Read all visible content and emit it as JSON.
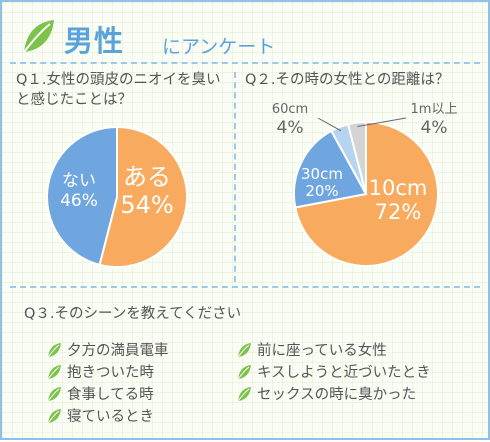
{
  "header": {
    "title": "男性",
    "subtitle": "にアンケート",
    "icon": "leaf-icon",
    "accent": "#5aa3da"
  },
  "q1": {
    "question": "Q１.女性の頭皮のニオイを臭いと感じたことは？"
  },
  "q2": {
    "question": "Q２.その時の女性との距離は？"
  },
  "q3": {
    "question": "Q３.そのシーンを教えてください",
    "items": [
      "夕方の満員電車",
      "前に座っている女性",
      "抱きついた時",
      "キスしようと近づいたとき",
      "食事してる時",
      "セックスの時に臭かった",
      "寝ているとき"
    ]
  },
  "chart_data": [
    {
      "type": "pie",
      "title": "Q１.女性の頭皮のニオイを臭いと感じたことは？",
      "categories": [
        "ある",
        "ない"
      ],
      "values": [
        54,
        46
      ],
      "value_labels": [
        "54%",
        "46%"
      ],
      "colors": [
        "#f8ab5f",
        "#6fa6e0"
      ]
    },
    {
      "type": "pie",
      "title": "Q２.その時の女性との距離は？",
      "categories": [
        "10cm",
        "30cm",
        "60cm",
        "1m以上"
      ],
      "values": [
        72,
        20,
        4,
        4
      ],
      "value_labels": [
        "72%",
        "20%",
        "4%",
        "4%"
      ],
      "colors": [
        "#f8ab5f",
        "#6fa6e0",
        "#b6d4f0",
        "#d4d4d4"
      ]
    }
  ]
}
